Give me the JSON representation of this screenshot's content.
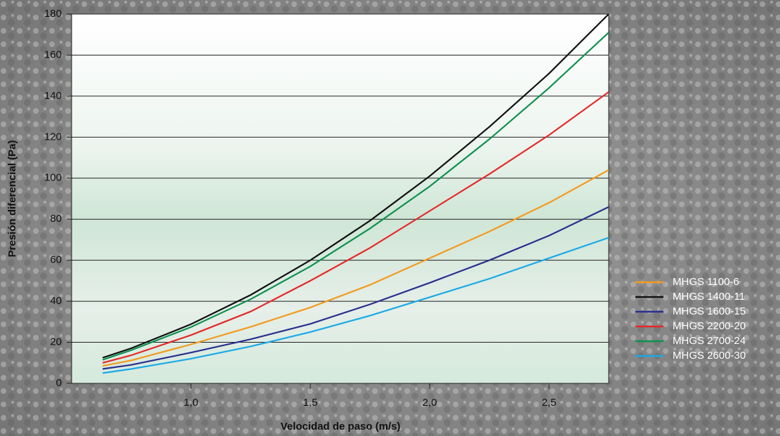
{
  "chart_data": {
    "type": "line",
    "x_label": "Velocidad de paso (m/s)",
    "y_label": "Presión diferencial (Pa)",
    "x": [
      0.63,
      0.75,
      1.0,
      1.25,
      1.5,
      1.75,
      2.0,
      2.25,
      2.5,
      2.75
    ],
    "series": [
      {
        "name": "MHGS 1100-6",
        "color": "#f39a1e",
        "values": [
          8.5,
          11.2,
          19,
          27.5,
          37,
          48,
          61,
          74,
          88,
          104
        ]
      },
      {
        "name": "MHGS 1400-11",
        "color": "#111111",
        "values": [
          12.5,
          17.1,
          28.8,
          43.1,
          60,
          79.3,
          101,
          125,
          151,
          180
        ]
      },
      {
        "name": "MHGS 1600-15",
        "color": "#2b2f8f",
        "values": [
          7,
          9,
          15,
          21.5,
          29,
          38.5,
          49,
          60,
          72,
          86
        ]
      },
      {
        "name": "MHGS 2200-20",
        "color": "#e42a28",
        "values": [
          10,
          13.7,
          23.5,
          35,
          50,
          66,
          84,
          102,
          121,
          142
        ]
      },
      {
        "name": "MHGS 2700-24",
        "color": "#0f9150",
        "values": [
          11.5,
          16.2,
          27.4,
          41,
          57,
          75.5,
          96,
          119,
          144,
          171
        ]
      },
      {
        "name": "MHGS 2600-30",
        "color": "#1aa9e6",
        "values": [
          5,
          7,
          12,
          18,
          25,
          33,
          42,
          51,
          61,
          71
        ]
      }
    ],
    "xlim": [
      0.5,
      2.75
    ],
    "ylim": [
      0,
      180
    ],
    "xticks": [
      {
        "value": 1,
        "label": "1,0"
      },
      {
        "value": 1.5,
        "label": "1,5"
      },
      {
        "value": 2,
        "label": "2,0"
      },
      {
        "value": 2.5,
        "label": "2,5"
      }
    ],
    "yticks": [
      0,
      20,
      40,
      60,
      80,
      100,
      120,
      140,
      160,
      180
    ],
    "grid": true
  }
}
